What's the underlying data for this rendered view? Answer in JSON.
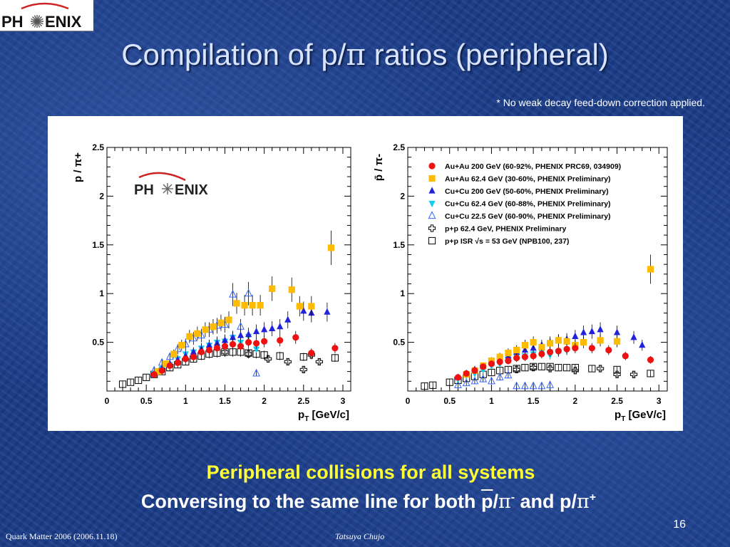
{
  "header": {
    "logo_text_left": "PH",
    "logo_text_right": "ENIX",
    "title_prefix": "Compilation of p/",
    "title_symbol": "π",
    "title_suffix": " ratios (peripheral)",
    "footnote": "* No weak decay feed-down correction applied."
  },
  "captions": {
    "line1": "Peripheral collisions for all systems",
    "line2_prefix": "Conversing to the same line for both",
    "line2_pbar": "p",
    "line2_slash1": "/",
    "line2_pi1": "π",
    "line2_sup1": "-",
    "line2_mid": " and p/",
    "line2_pi2": "π",
    "line2_sup2": "+"
  },
  "footer": {
    "page_number": "16",
    "conference": "Quark Matter 2006 (2006.11.18)",
    "author": "Tatsuya Chujo"
  },
  "colors": {
    "auau200": "#ee1111",
    "auau62": "#ffbb00",
    "cucu200": "#2222dd",
    "cucu62": "#11ccee",
    "cucu22": "#3366ff",
    "pp62": "#000000",
    "ppisr": "#000000"
  },
  "chart_data": [
    {
      "type": "scatter",
      "title": "",
      "xlabel": "p_T [GeV/c]",
      "ylabel": "p / π+",
      "xlim": [
        0,
        3.1
      ],
      "ylim": [
        0,
        2.5
      ],
      "xticks": [
        "0",
        "0.5",
        "1",
        "1.5",
        "2",
        "2.5",
        "3"
      ],
      "yticks": [
        "0.5",
        "1",
        "1.5",
        "2",
        "2.5"
      ],
      "inset_logo_left": "PH",
      "inset_logo_right": "ENIX",
      "series": [
        {
          "key": "ppisr",
          "marker": "square-open",
          "x": [
            0.2,
            0.3,
            0.4,
            0.5,
            0.6,
            0.7,
            0.8,
            0.9,
            1.0,
            1.1,
            1.2,
            1.3,
            1.4,
            1.5,
            1.6,
            1.7,
            1.8,
            1.9,
            2.0,
            2.2,
            2.5,
            2.9
          ],
          "y": [
            0.07,
            0.09,
            0.11,
            0.14,
            0.17,
            0.2,
            0.24,
            0.27,
            0.3,
            0.33,
            0.36,
            0.38,
            0.39,
            0.4,
            0.4,
            0.4,
            0.39,
            0.38,
            0.37,
            0.36,
            0.35,
            0.34
          ]
        },
        {
          "key": "pp62",
          "marker": "cross-open",
          "x": [
            1.5,
            1.8,
            2.05,
            2.3,
            2.5,
            2.6,
            2.7
          ],
          "y": [
            0.4,
            0.38,
            0.33,
            0.3,
            0.22,
            0.37,
            0.3
          ]
        },
        {
          "key": "cucu22",
          "marker": "triangle-up-open",
          "x": [
            0.6,
            0.7,
            0.8,
            0.9,
            1.0,
            1.1,
            1.2,
            1.3,
            1.4,
            1.5,
            1.6,
            1.7,
            1.8,
            1.9
          ],
          "y": [
            0.21,
            0.29,
            0.35,
            0.43,
            0.48,
            0.54,
            0.57,
            0.63,
            0.67,
            0.68,
            0.99,
            0.66,
            1.0,
            0.18
          ]
        },
        {
          "key": "cucu62",
          "marker": "triangle-down",
          "x": [
            0.6,
            0.7,
            0.8,
            0.9,
            1.0,
            1.1,
            1.2,
            1.3,
            1.4,
            1.5,
            1.6,
            1.7,
            1.8,
            1.9
          ],
          "y": [
            0.18,
            0.23,
            0.27,
            0.33,
            0.38,
            0.4,
            0.44,
            0.47,
            0.5,
            0.51,
            0.55,
            0.5,
            0.56,
            0.43
          ]
        },
        {
          "key": "cucu200",
          "marker": "triangle-up",
          "x": [
            0.6,
            0.7,
            0.8,
            0.9,
            1.0,
            1.1,
            1.2,
            1.3,
            1.4,
            1.5,
            1.6,
            1.7,
            1.8,
            1.9,
            2.0,
            2.1,
            2.2,
            2.3,
            2.5,
            2.6,
            2.8
          ],
          "y": [
            0.17,
            0.23,
            0.28,
            0.32,
            0.36,
            0.4,
            0.43,
            0.47,
            0.49,
            0.52,
            0.55,
            0.57,
            0.58,
            0.61,
            0.63,
            0.64,
            0.66,
            0.73,
            0.82,
            0.8,
            0.81
          ]
        },
        {
          "key": "auau62",
          "marker": "square",
          "x": [
            0.65,
            0.75,
            0.85,
            0.95,
            1.05,
            1.15,
            1.25,
            1.35,
            1.45,
            1.55,
            1.65,
            1.75,
            1.85,
            1.95,
            2.1,
            2.35,
            2.45,
            2.6,
            2.85
          ],
          "y": [
            0.2,
            0.28,
            0.38,
            0.47,
            0.56,
            0.59,
            0.63,
            0.66,
            0.7,
            0.73,
            0.9,
            0.88,
            0.88,
            0.88,
            1.05,
            1.04,
            0.87,
            0.87,
            1.47
          ]
        },
        {
          "key": "auau200",
          "marker": "circle",
          "x": [
            0.6,
            0.7,
            0.8,
            0.9,
            1.0,
            1.1,
            1.2,
            1.3,
            1.4,
            1.5,
            1.6,
            1.7,
            1.8,
            1.9,
            2.0,
            2.2,
            2.4,
            2.6,
            2.9
          ],
          "y": [
            0.17,
            0.21,
            0.26,
            0.29,
            0.33,
            0.35,
            0.4,
            0.42,
            0.44,
            0.46,
            0.48,
            0.46,
            0.5,
            0.49,
            0.51,
            0.52,
            0.55,
            0.39,
            0.44
          ]
        }
      ]
    },
    {
      "type": "scatter",
      "title": "",
      "xlabel": "p_T [GeV/c]",
      "ylabel": "p̄ / π-",
      "xlim": [
        0,
        3.1
      ],
      "ylim": [
        0,
        2.5
      ],
      "xticks": [
        "0",
        "0.5",
        "1",
        "1.5",
        "2",
        "2.5",
        "3"
      ],
      "yticks": [
        "0.5",
        "1",
        "1.5",
        "2",
        "2.5"
      ],
      "legend": [
        {
          "key": "auau200",
          "marker": "circle",
          "label": "Au+Au 200 GeV (60-92%, PHENIX PRC69, 034909)"
        },
        {
          "key": "auau62",
          "marker": "square",
          "label": "Au+Au 62.4 GeV (30-60%, PHENIX Preliminary)"
        },
        {
          "key": "cucu200",
          "marker": "triangle-up",
          "label": "Cu+Cu 200 GeV (50-60%, PHENIX Preliminary)"
        },
        {
          "key": "cucu62",
          "marker": "triangle-down",
          "label": "Cu+Cu 62.4 GeV (60-88%, PHENIX Preliminary)"
        },
        {
          "key": "cucu22",
          "marker": "triangle-up-open",
          "label": "Cu+Cu 22.5  GeV (60-90%, PHENIX Preliminary)"
        },
        {
          "key": "pp62",
          "marker": "cross-open",
          "label": "p+p 62.4 GeV, PHENIX Preliminary"
        },
        {
          "key": "ppisr",
          "marker": "square-open",
          "label": "p+p ISR √s = 53 GeV (NPB100, 237)"
        }
      ],
      "series": [
        {
          "key": "ppisr",
          "marker": "square-open",
          "x": [
            0.2,
            0.3,
            0.5,
            0.6,
            0.7,
            0.8,
            0.9,
            1.0,
            1.1,
            1.2,
            1.3,
            1.4,
            1.5,
            1.6,
            1.7,
            1.8,
            1.9,
            2.0,
            2.2,
            2.5,
            2.9
          ],
          "y": [
            0.05,
            0.06,
            0.09,
            0.11,
            0.13,
            0.15,
            0.17,
            0.19,
            0.21,
            0.22,
            0.23,
            0.24,
            0.25,
            0.25,
            0.25,
            0.24,
            0.24,
            0.24,
            0.23,
            0.22,
            0.18
          ]
        },
        {
          "key": "pp62",
          "marker": "cross-open",
          "x": [
            1.3,
            1.5,
            1.7,
            2.0,
            2.3,
            2.5,
            2.7
          ],
          "y": [
            0.22,
            0.24,
            0.23,
            0.21,
            0.23,
            0.17,
            0.17
          ]
        },
        {
          "key": "cucu22",
          "marker": "triangle-up-open",
          "x": [
            0.6,
            0.7,
            0.8,
            0.9,
            1.0,
            1.1,
            1.2,
            1.3,
            1.4,
            1.5,
            1.6,
            1.7
          ],
          "y": [
            0.06,
            0.08,
            0.1,
            0.12,
            0.1,
            0.14,
            0.16,
            0.05,
            0.05,
            0.05,
            0.05,
            0.06
          ]
        },
        {
          "key": "cucu62",
          "marker": "triangle-down",
          "x": [
            0.6,
            0.7,
            0.8,
            0.9,
            1.0,
            1.1,
            1.2,
            1.3,
            1.4,
            1.5,
            1.6,
            1.7,
            1.8,
            1.9
          ],
          "y": [
            0.12,
            0.16,
            0.18,
            0.22,
            0.26,
            0.28,
            0.32,
            0.35,
            0.36,
            0.38,
            0.4,
            0.37,
            0.4,
            0.42
          ]
        },
        {
          "key": "cucu200",
          "marker": "triangle-up",
          "x": [
            0.6,
            0.7,
            0.8,
            0.9,
            1.0,
            1.1,
            1.2,
            1.3,
            1.4,
            1.5,
            1.6,
            1.7,
            1.8,
            1.9,
            2.0,
            2.1,
            2.2,
            2.3,
            2.5,
            2.7,
            2.8
          ],
          "y": [
            0.14,
            0.18,
            0.22,
            0.25,
            0.29,
            0.33,
            0.36,
            0.4,
            0.42,
            0.44,
            0.47,
            0.5,
            0.52,
            0.53,
            0.56,
            0.6,
            0.61,
            0.63,
            0.6,
            0.55,
            0.47
          ]
        },
        {
          "key": "auau62",
          "marker": "square",
          "x": [
            0.7,
            0.8,
            0.9,
            1.0,
            1.1,
            1.2,
            1.3,
            1.4,
            1.5,
            1.6,
            1.7,
            1.8,
            1.9,
            2.0,
            2.1,
            2.3,
            2.5,
            2.9
          ],
          "y": [
            0.17,
            0.21,
            0.26,
            0.31,
            0.35,
            0.39,
            0.42,
            0.47,
            0.5,
            0.45,
            0.49,
            0.52,
            0.51,
            0.47,
            0.5,
            0.52,
            0.51,
            1.25
          ]
        },
        {
          "key": "auau200",
          "marker": "circle",
          "x": [
            0.6,
            0.7,
            0.8,
            0.9,
            1.0,
            1.1,
            1.2,
            1.3,
            1.4,
            1.5,
            1.6,
            1.7,
            1.8,
            1.9,
            2.0,
            2.2,
            2.4,
            2.6,
            2.9
          ],
          "y": [
            0.14,
            0.18,
            0.21,
            0.25,
            0.28,
            0.3,
            0.31,
            0.34,
            0.35,
            0.36,
            0.38,
            0.4,
            0.41,
            0.43,
            0.44,
            0.44,
            0.42,
            0.36,
            0.32
          ]
        }
      ]
    }
  ]
}
